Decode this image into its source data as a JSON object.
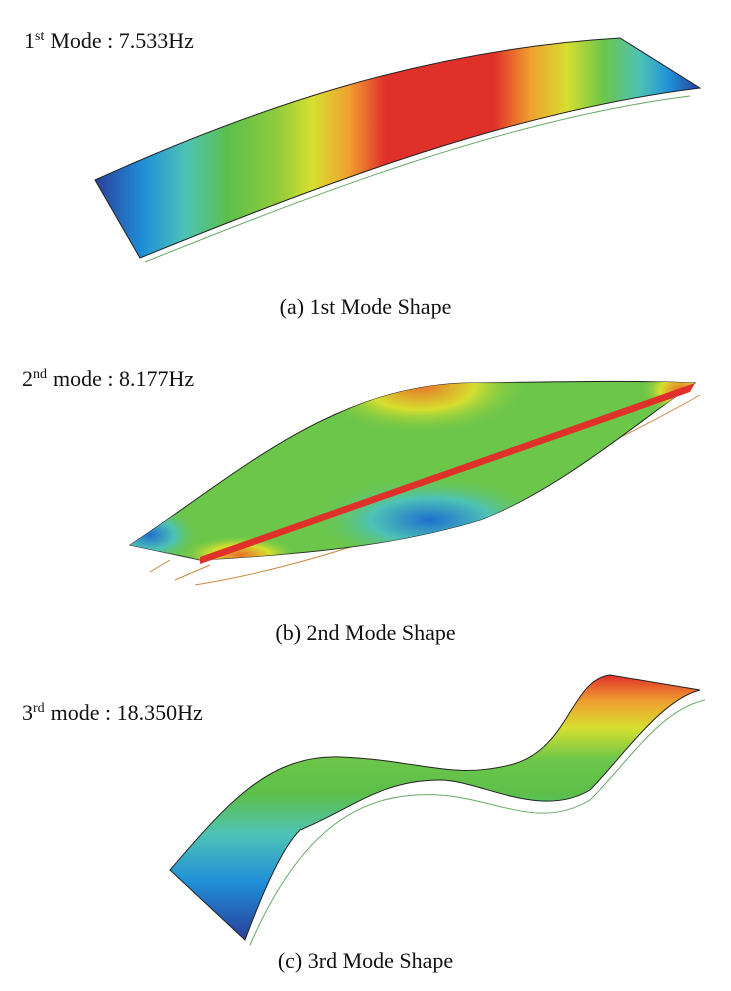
{
  "panels": [
    {
      "label": {
        "number": "1",
        "superscript": "st",
        "text": "Mode : 7.533Hz"
      },
      "caption": "(a) 1st Mode Shape"
    },
    {
      "label": {
        "number": "2",
        "superscript": "nd",
        "text": "mode : 8.177Hz"
      },
      "caption": "(b) 2nd Mode Shape"
    },
    {
      "label": {
        "number": "3",
        "superscript": "rd",
        "text": "mode : 18.350Hz"
      },
      "caption": "(c) 3rd Mode Shape"
    }
  ]
}
